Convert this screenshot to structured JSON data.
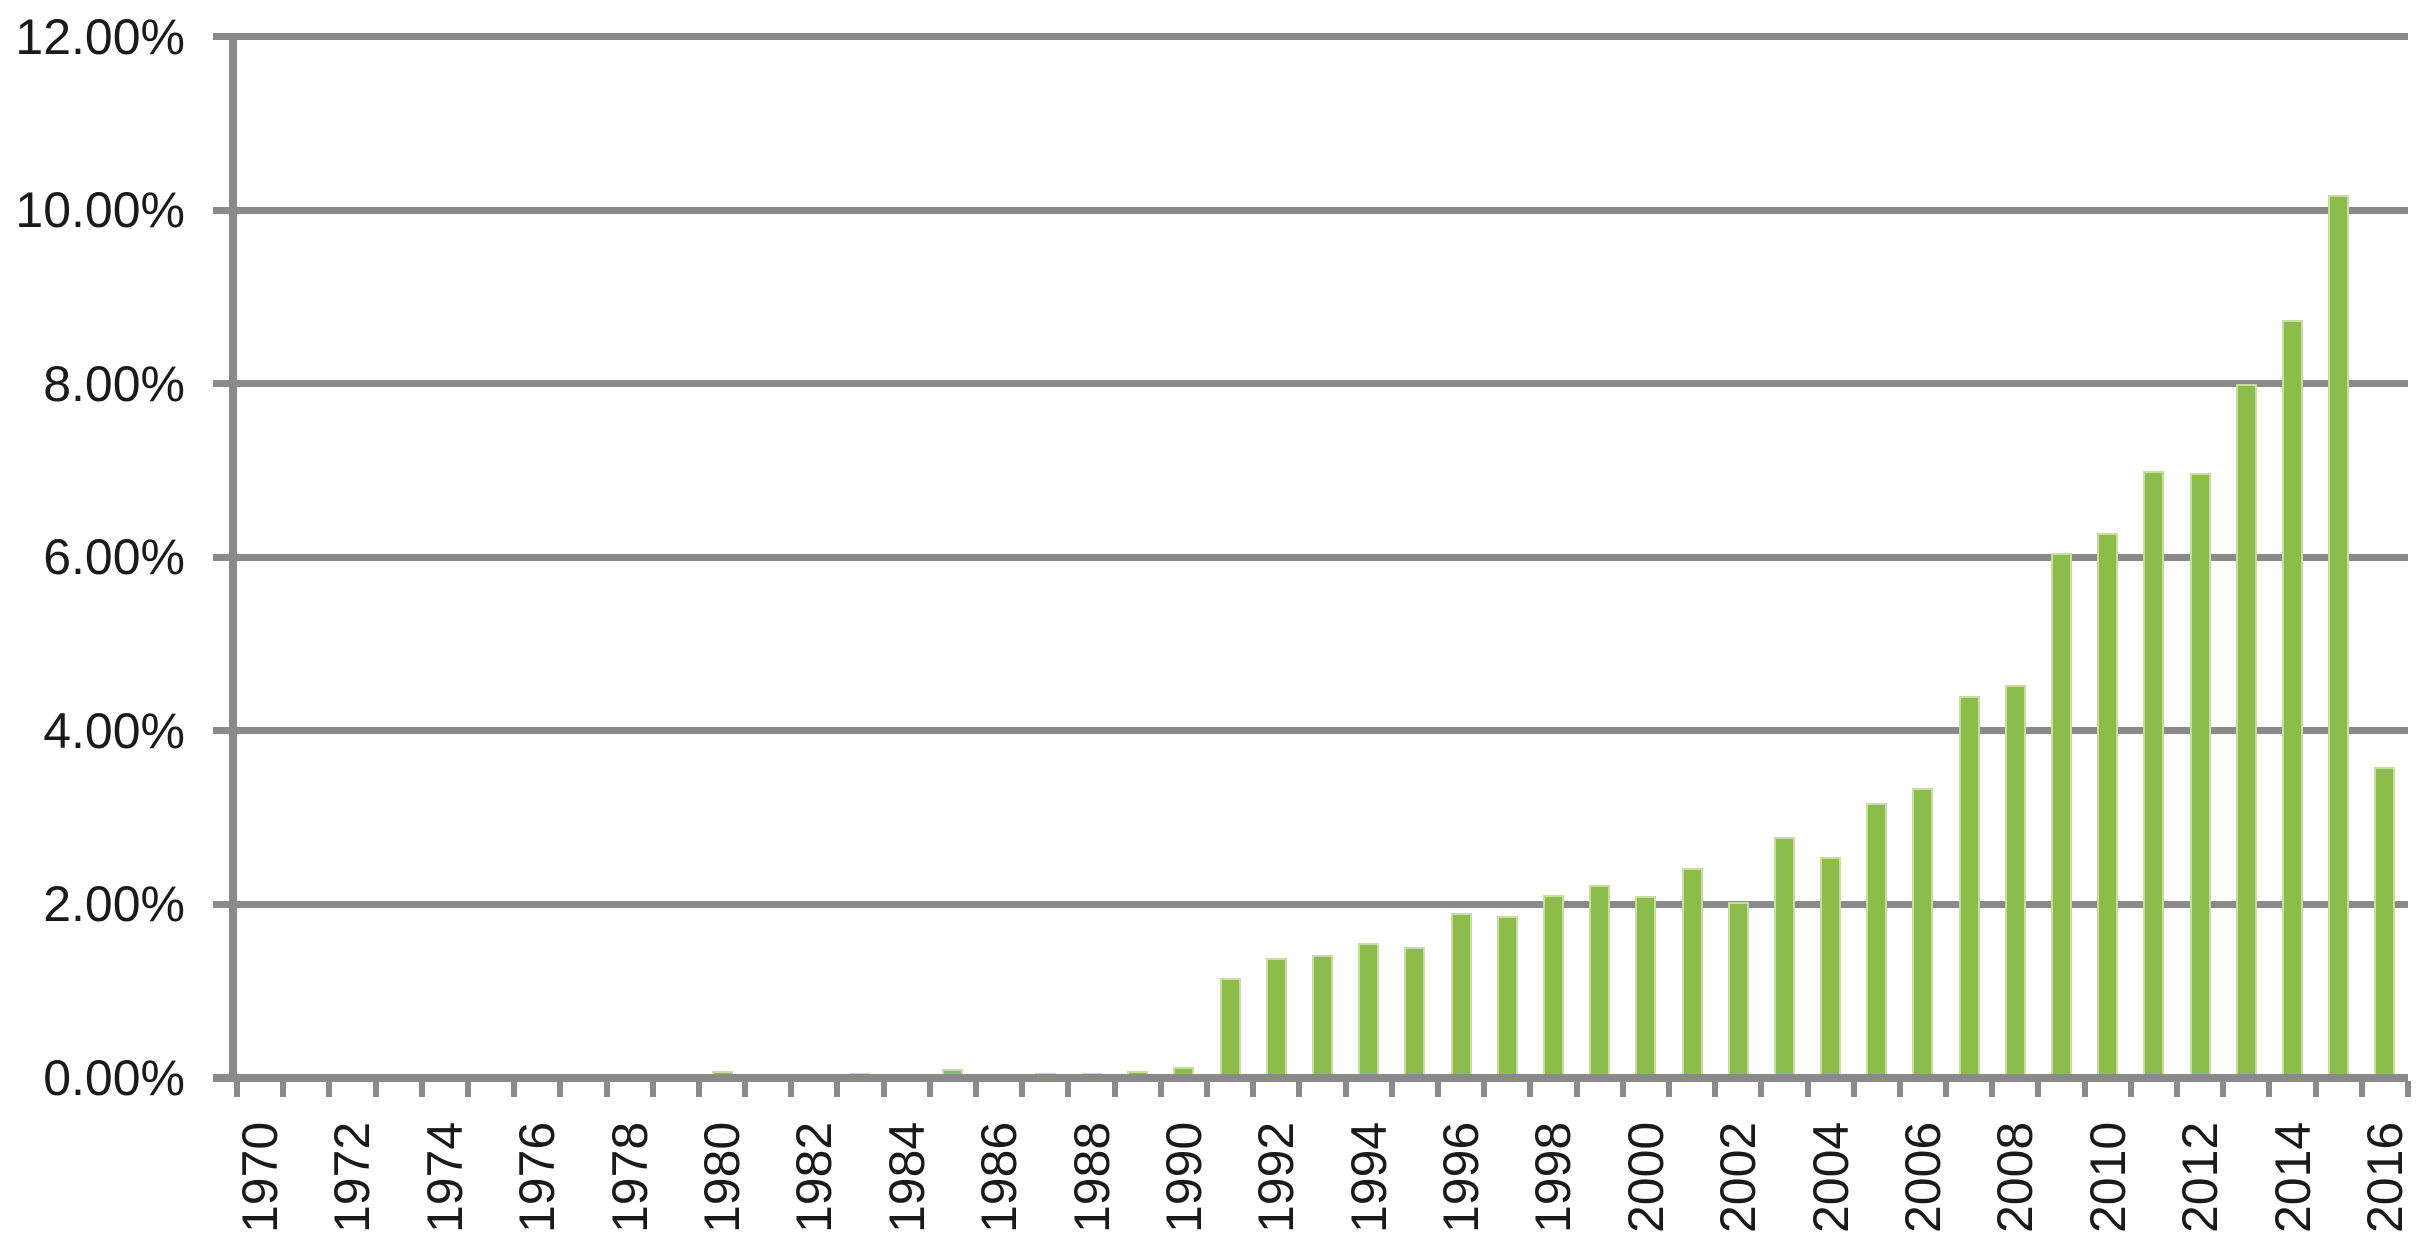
{
  "chart_data": {
    "type": "bar",
    "title": "",
    "xlabel": "",
    "ylabel": "",
    "legend": "none",
    "grid": true,
    "ylim": [
      0,
      12
    ],
    "y_tick_labels": [
      "0.00%",
      "2.00%",
      "4.00%",
      "6.00%",
      "8.00%",
      "10.00%",
      "12.00%"
    ],
    "y_tick_values": [
      0,
      2,
      4,
      6,
      8,
      10,
      12
    ],
    "x_tick_labels": [
      "1970",
      "1972",
      "1974",
      "1976",
      "1978",
      "1980",
      "1982",
      "1984",
      "1986",
      "1988",
      "1990",
      "1992",
      "1994",
      "1996",
      "1998",
      "2000",
      "2002",
      "2004",
      "2006",
      "2008",
      "2010",
      "2012",
      "2014",
      "2016"
    ],
    "categories": [
      "1970",
      "1971",
      "1972",
      "1973",
      "1974",
      "1975",
      "1976",
      "1977",
      "1978",
      "1979",
      "1980",
      "1981",
      "1982",
      "1983",
      "1984",
      "1985",
      "1986",
      "1987",
      "1988",
      "1989",
      "1990",
      "1991",
      "1992",
      "1993",
      "1994",
      "1995",
      "1996",
      "1997",
      "1998",
      "1999",
      "2000",
      "2001",
      "2002",
      "2003",
      "2004",
      "2005",
      "2006",
      "2007",
      "2008",
      "2009",
      "2010",
      "2011",
      "2012",
      "2013",
      "2014",
      "2015",
      "2016"
    ],
    "values": [
      0,
      0,
      0,
      0,
      0,
      0,
      0,
      0,
      0,
      0,
      0.08,
      0,
      0,
      0.05,
      0,
      0.1,
      0.04,
      0.05,
      0.05,
      0.08,
      0.12,
      1.15,
      1.38,
      1.41,
      1.55,
      1.5,
      1.9,
      1.86,
      2.1,
      2.22,
      2.09,
      2.41,
      2.02,
      2.77,
      2.54,
      3.17,
      3.34,
      4.4,
      4.52,
      6.05,
      6.28,
      6.99,
      6.97,
      7.99,
      8.73,
      10.17,
      3.58
    ],
    "value_unit": "%",
    "colors": {
      "bar_fill": "#8CBD4B",
      "bar_edge": "#C7DDA2",
      "gridline": "#8A8A8A",
      "axis_line": "#8A8A8A",
      "tick": "#8A8A8A",
      "text": "#1A1A1A",
      "background": "#FFFFFF"
    }
  }
}
